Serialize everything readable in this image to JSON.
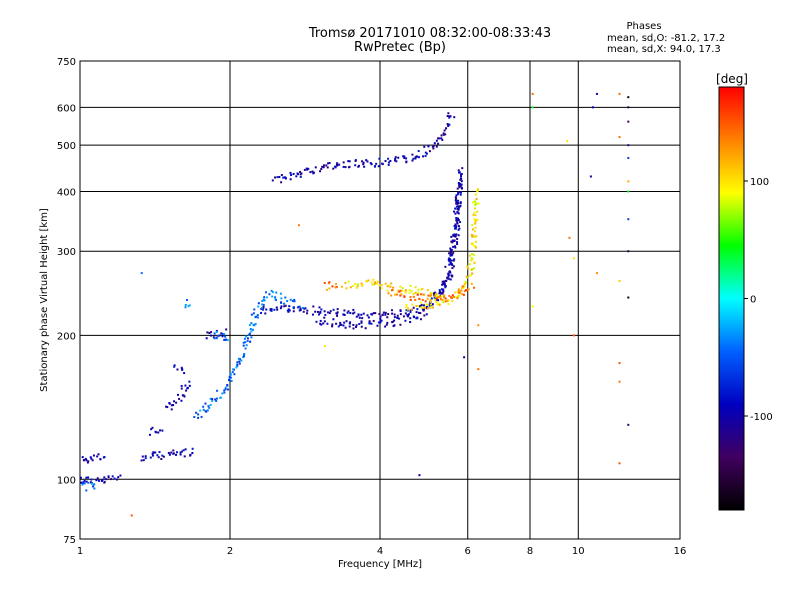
{
  "header": {
    "title_line1": "Tromsø 20171010 08:32:00-08:33:43",
    "title_line2": "RwPretec (Bp)"
  },
  "phases_box": {
    "heading": "Phases",
    "o_line": "mean, sd,O: -81.2, 17.2",
    "x_line": "mean, sd,X:  94.0, 17.3"
  },
  "colorbar": {
    "unit": "[deg]",
    "range": [
      -180,
      180
    ],
    "ticks": [
      100,
      0,
      -100
    ],
    "colors": [
      "#ff0000",
      "#ff8000",
      "#ffff00",
      "#00ff00",
      "#00ffff",
      "#0060ff",
      "#0000c0",
      "#400060",
      "#000000"
    ]
  },
  "chart_data": {
    "type": "scatter",
    "title": "Tromsø 20171010 08:32:00-08:33:43",
    "subtitle": "RwPretec (Bp)",
    "xlabel": "Frequency [MHz]",
    "ylabel": "Stationary phase Virtual Height [km]",
    "xscale": "log",
    "yscale": "log",
    "xlim": [
      1,
      16
    ],
    "ylim": [
      75,
      750
    ],
    "xticks": [
      1,
      2,
      4,
      6,
      8,
      10,
      16
    ],
    "yticks": [
      75,
      100,
      200,
      300,
      400,
      500,
      600,
      750
    ],
    "grid": true,
    "traces": [
      {
        "segments": [
          [
            [
              1.0,
              100
            ],
            [
              1.1,
              99
            ],
            [
              1.2,
              101
            ]
          ],
          [
            [
              1.0,
              110
            ],
            [
              1.12,
              112
            ]
          ],
          [
            [
              1.33,
              110
            ],
            [
              1.42,
              112
            ],
            [
              1.55,
              113
            ],
            [
              1.68,
              114
            ]
          ],
          [
            [
              1.38,
              125
            ],
            [
              1.45,
              128
            ]
          ],
          [
            [
              1.5,
              140
            ],
            [
              1.6,
              150
            ],
            [
              1.65,
              160
            ]
          ],
          [
            [
              1.55,
              170
            ],
            [
              1.62,
              168
            ]
          ],
          [
            [
              1.8,
              200
            ],
            [
              1.95,
              202
            ]
          ],
          [
            [
              2.45,
              420
            ],
            [
              2.8,
              440
            ],
            [
              3.3,
              455
            ],
            [
              4.0,
              460
            ],
            [
              4.7,
              470
            ],
            [
              5.2,
              500
            ],
            [
              5.6,
              580
            ]
          ],
          [
            [
              2.3,
              225
            ],
            [
              2.6,
              228
            ],
            [
              3.0,
              225
            ],
            [
              3.5,
              222
            ],
            [
              4.0,
              220
            ],
            [
              4.6,
              225
            ],
            [
              5.1,
              235
            ],
            [
              5.5,
              260
            ],
            [
              5.7,
              330
            ],
            [
              5.8,
              450
            ]
          ],
          [
            [
              3.0,
              215
            ],
            [
              3.5,
              210
            ],
            [
              4.2,
              212
            ],
            [
              4.8,
              220
            ],
            [
              5.3,
              245
            ],
            [
              5.6,
              300
            ],
            [
              5.8,
              420
            ]
          ]
        ],
        "phase": -100
      },
      {
        "segments": [
          [
            [
              1.7,
              135
            ],
            [
              1.85,
              145
            ],
            [
              2.0,
              160
            ],
            [
              2.15,
              190
            ],
            [
              2.25,
              220
            ],
            [
              2.4,
              245
            ],
            [
              2.5,
              240
            ],
            [
              2.8,
              230
            ]
          ],
          [
            [
              1.0,
              97
            ],
            [
              1.08,
              96
            ]
          ],
          [
            [
              1.62,
              235
            ],
            [
              1.65,
              230
            ]
          ],
          [
            [
              1.85,
              200
            ],
            [
              2.0,
              199
            ]
          ]
        ],
        "phase": -45
      },
      {
        "segments": [
          [
            [
              3.4,
              255
            ],
            [
              3.8,
              258
            ],
            [
              4.2,
              252
            ],
            [
              4.6,
              250
            ],
            [
              5.0,
              245
            ],
            [
              5.3,
              242
            ]
          ],
          [
            [
              4.5,
              230
            ],
            [
              5.0,
              232
            ],
            [
              5.5,
              237
            ],
            [
              5.9,
              250
            ],
            [
              6.1,
              280
            ],
            [
              6.2,
              350
            ],
            [
              6.25,
              400
            ]
          ]
        ],
        "phase": 100
      },
      {
        "segments": [
          [
            [
              4.2,
              245
            ],
            [
              4.8,
              240
            ],
            [
              5.3,
              238
            ],
            [
              5.8,
              245
            ],
            [
              6.1,
              255
            ]
          ],
          [
            [
              3.1,
              255
            ],
            [
              3.3,
              250
            ]
          ]
        ],
        "phase": 140
      }
    ],
    "points": [
      {
        "x": 1.27,
        "y": 84,
        "phase": 150
      },
      {
        "x": 1.33,
        "y": 270,
        "phase": -40
      },
      {
        "x": 2.75,
        "y": 340,
        "phase": 140
      },
      {
        "x": 3.1,
        "y": 190,
        "phase": 100
      },
      {
        "x": 4.8,
        "y": 102,
        "phase": -90
      },
      {
        "x": 5.9,
        "y": 180,
        "phase": -100
      },
      {
        "x": 6.3,
        "y": 210,
        "phase": 130
      },
      {
        "x": 6.3,
        "y": 170,
        "phase": 140
      },
      {
        "x": 8.1,
        "y": 640,
        "phase": 140
      },
      {
        "x": 8.1,
        "y": 600,
        "phase": 40
      },
      {
        "x": 8.1,
        "y": 230,
        "phase": 90
      },
      {
        "x": 9.5,
        "y": 510,
        "phase": 100
      },
      {
        "x": 9.6,
        "y": 320,
        "phase": 140
      },
      {
        "x": 9.8,
        "y": 290,
        "phase": 100
      },
      {
        "x": 9.8,
        "y": 200,
        "phase": 150
      },
      {
        "x": 10.9,
        "y": 640,
        "phase": -100
      },
      {
        "x": 10.9,
        "y": 270,
        "phase": 130
      },
      {
        "x": 10.7,
        "y": 600,
        "phase": -90
      },
      {
        "x": 10.6,
        "y": 430,
        "phase": -110
      },
      {
        "x": 12.1,
        "y": 640,
        "phase": 140
      },
      {
        "x": 12.1,
        "y": 520,
        "phase": 140
      },
      {
        "x": 12.1,
        "y": 260,
        "phase": 110
      },
      {
        "x": 12.1,
        "y": 175,
        "phase": 150
      },
      {
        "x": 12.1,
        "y": 160,
        "phase": 140
      },
      {
        "x": 12.1,
        "y": 108,
        "phase": 150
      },
      {
        "x": 12.6,
        "y": 630,
        "phase": -170
      },
      {
        "x": 12.6,
        "y": 600,
        "phase": -150
      },
      {
        "x": 12.6,
        "y": 560,
        "phase": -130
      },
      {
        "x": 12.6,
        "y": 500,
        "phase": -120
      },
      {
        "x": 12.6,
        "y": 470,
        "phase": -60
      },
      {
        "x": 12.6,
        "y": 420,
        "phase": 120
      },
      {
        "x": 12.6,
        "y": 400,
        "phase": 40
      },
      {
        "x": 12.6,
        "y": 350,
        "phase": -60
      },
      {
        "x": 12.6,
        "y": 300,
        "phase": -150
      },
      {
        "x": 12.6,
        "y": 240,
        "phase": -170
      },
      {
        "x": 12.6,
        "y": 130,
        "phase": -120
      }
    ]
  }
}
